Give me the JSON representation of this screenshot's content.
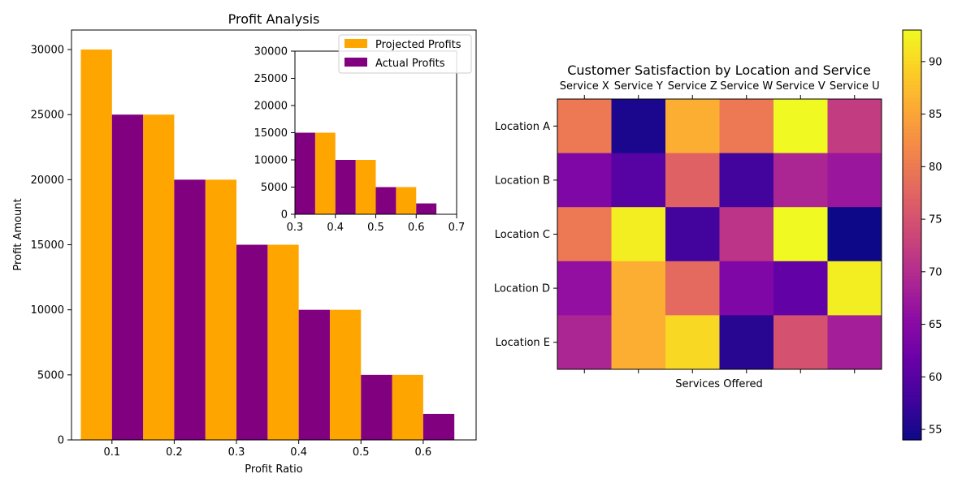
{
  "chart_data": [
    {
      "type": "bar",
      "title": "Profit Analysis",
      "xlabel": "Profit Ratio",
      "ylabel": "Profit Amount",
      "x": [
        0.1,
        0.2,
        0.3,
        0.4,
        0.5,
        0.6
      ],
      "xticks": [
        "0.1",
        "0.2",
        "0.3",
        "0.4",
        "0.5",
        "0.6"
      ],
      "yticks": [
        "0",
        "5000",
        "10000",
        "15000",
        "20000",
        "25000",
        "30000"
      ],
      "xlim": [
        0.035,
        0.685
      ],
      "ylim": [
        0,
        31500
      ],
      "bar_width": 0.05,
      "series": [
        {
          "name": "Projected Profits",
          "color": "#FFA500",
          "offset": -0.025,
          "values": [
            30000,
            25000,
            20000,
            15000,
            10000,
            5000
          ]
        },
        {
          "name": "Actual Profits",
          "color": "#800080",
          "offset": 0.025,
          "values": [
            25000,
            20000,
            15000,
            10000,
            5000,
            2000
          ]
        }
      ],
      "legend": {
        "position": "top-right",
        "labels": [
          "Projected Profits",
          "Actual Profits"
        ]
      },
      "inset": {
        "type": "bar",
        "xlim": [
          0.3,
          0.7
        ],
        "ylim": [
          0,
          30000
        ],
        "xticks": [
          "0.3",
          "0.4",
          "0.5",
          "0.6",
          "0.7"
        ],
        "yticks": [
          "0",
          "5000",
          "10000",
          "15000",
          "20000",
          "25000",
          "30000"
        ]
      }
    },
    {
      "type": "heatmap",
      "title": "Customer Satisfaction by Location and Service",
      "xlabel": "Services Offered",
      "ylabel": "",
      "columns": [
        "Service X",
        "Service Y",
        "Service Z",
        "Service W",
        "Service V",
        "Service U"
      ],
      "rows": [
        "Location A",
        "Location B",
        "Location C",
        "Location D",
        "Location E"
      ],
      "values": [
        [
          80,
          55,
          86,
          80,
          93,
          72
        ],
        [
          64,
          60,
          77,
          58,
          69,
          67
        ],
        [
          80,
          92,
          58,
          71,
          93,
          54
        ],
        [
          66,
          86,
          78,
          64,
          61,
          92
        ],
        [
          69,
          86,
          90,
          56,
          75,
          68
        ]
      ],
      "colormap": "plasma",
      "colorbar": {
        "min": 54,
        "max": 93,
        "ticks": [
          "55",
          "60",
          "65",
          "70",
          "75",
          "80",
          "85",
          "90"
        ]
      }
    }
  ]
}
